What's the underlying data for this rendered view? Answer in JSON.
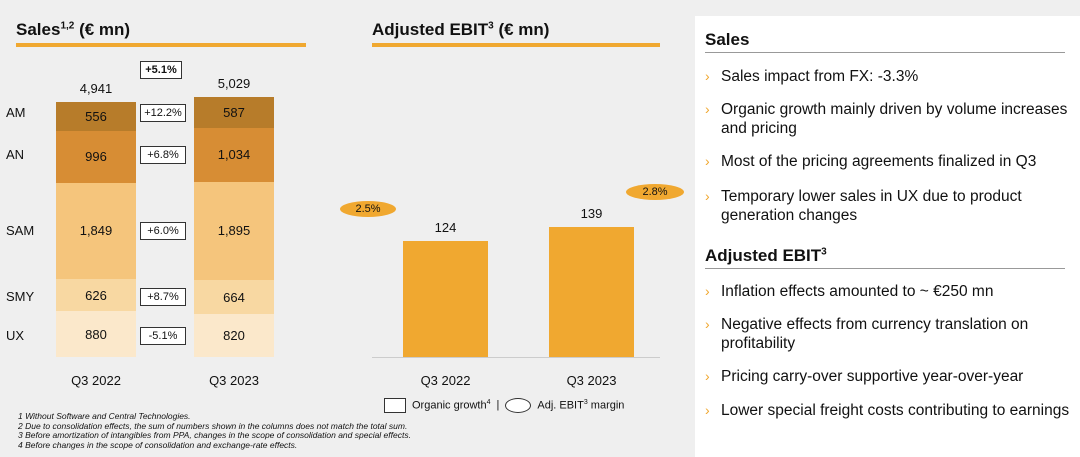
{
  "sales": {
    "title": "Sales",
    "title_sup": "1,2",
    "title_unit": " (€ mn)",
    "segments": [
      "AM",
      "AN",
      "SAM",
      "SMY",
      "UX"
    ],
    "growth_total": "+5.1%",
    "growth": [
      "+12.2%",
      "+6.8%",
      "+6.0%",
      "+8.7%",
      "-5.1%"
    ]
  },
  "ebit": {
    "title": "Adjusted EBIT",
    "title_sup": "3",
    "title_unit": " (€ mn)",
    "margins": [
      "2.5%",
      "2.8%"
    ],
    "legend_growth": "Organic growth",
    "legend_growth_sup": "4",
    "legend_sep": "|",
    "legend_margin": "Adj. EBIT",
    "legend_margin_sup": "3",
    "legend_margin_rest": " margin"
  },
  "chart_data": [
    {
      "type": "bar",
      "stacked": true,
      "categories": [
        "Q3 2022",
        "Q3 2023"
      ],
      "totals": [
        "4,941",
        "5,029"
      ],
      "series": [
        {
          "name": "AM",
          "values": [
            556,
            587
          ],
          "labels": [
            "556",
            "587"
          ],
          "color": "#b77c2a"
        },
        {
          "name": "AN",
          "values": [
            996,
            1034
          ],
          "labels": [
            "996",
            "1,034"
          ],
          "color": "#d78d34"
        },
        {
          "name": "SAM",
          "values": [
            1849,
            1895
          ],
          "labels": [
            "1,849",
            "1,895"
          ],
          "color": "#f5c57c"
        },
        {
          "name": "SMY",
          "values": [
            626,
            664
          ],
          "labels": [
            "626",
            "664"
          ],
          "color": "#f8d8a2"
        },
        {
          "name": "UX",
          "values": [
            880,
            820
          ],
          "labels": [
            "880",
            "820"
          ],
          "color": "#fbe8cb"
        }
      ]
    },
    {
      "type": "bar",
      "categories": [
        "Q3 2022",
        "Q3 2023"
      ],
      "values": [
        124,
        139
      ],
      "labels": [
        "124",
        "139"
      ],
      "color": "#f0a830"
    }
  ],
  "panel": {
    "sales_heading": "Sales",
    "sales_bullets": [
      "Sales impact from FX: -3.3%",
      "Organic growth mainly driven by volume increases and pricing",
      "Most of the pricing agreements finalized in Q3",
      "Temporary lower sales in UX due to product generation changes"
    ],
    "ebit_heading": "Adjusted EBIT",
    "ebit_heading_sup": "3",
    "ebit_bullets": [
      "Inflation effects amounted to ~ €250 mn",
      "Negative effects from currency translation on profitability",
      "Pricing carry-over supportive year-over-year",
      "Lower special freight costs contributing to earnings"
    ]
  },
  "footnotes": [
    "1 Without Software and Central Technologies.",
    "2 Due to consolidation effects, the sum of numbers shown in the columns does not match the total sum.",
    "3 Before amortization of intangibles from PPA, changes in the scope of consolidation and special effects.",
    "4 Before changes in the scope of consolidation and exchange-rate effects."
  ],
  "colors": {
    "accent": "#f0a830",
    "background": "#efefef"
  }
}
